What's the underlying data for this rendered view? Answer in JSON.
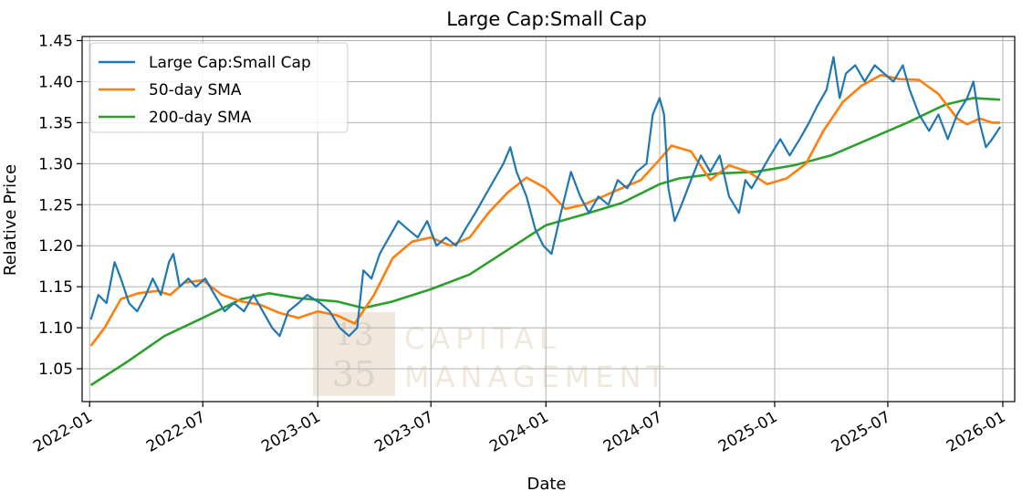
{
  "chart_data": {
    "type": "line",
    "title": "Large Cap:Small Cap",
    "xlabel": "Date",
    "ylabel": "Relative Price",
    "ylim": [
      1.01,
      1.455
    ],
    "x_range": [
      "2021-12-20",
      "2026-01-20"
    ],
    "grid": true,
    "legend_position": "top-left",
    "y_ticks": [
      1.05,
      1.1,
      1.15,
      1.2,
      1.25,
      1.3,
      1.35,
      1.4,
      1.45
    ],
    "y_tick_labels": [
      "1.05",
      "1.10",
      "1.15",
      "1.20",
      "1.25",
      "1.30",
      "1.35",
      "1.40",
      "1.45"
    ],
    "x_ticks": [
      "2022-01-01",
      "2022-07-01",
      "2023-01-01",
      "2023-07-01",
      "2024-01-01",
      "2024-07-01",
      "2025-01-01",
      "2025-07-01",
      "2026-01-01"
    ],
    "x_tick_labels": [
      "2022-01",
      "2022-07",
      "2023-01",
      "2023-07",
      "2024-01",
      "2024-07",
      "2025-01",
      "2025-07",
      "2026-01"
    ],
    "series": [
      {
        "name": "Large Cap:Small Cap",
        "color": "#1f77b4",
        "points": [
          [
            "2022-01-03",
            1.11
          ],
          [
            "2022-01-15",
            1.14
          ],
          [
            "2022-01-28",
            1.13
          ],
          [
            "2022-02-10",
            1.18
          ],
          [
            "2022-02-20",
            1.16
          ],
          [
            "2022-03-05",
            1.13
          ],
          [
            "2022-03-18",
            1.12
          ],
          [
            "2022-04-01",
            1.14
          ],
          [
            "2022-04-12",
            1.16
          ],
          [
            "2022-04-25",
            1.14
          ],
          [
            "2022-05-08",
            1.18
          ],
          [
            "2022-05-15",
            1.19
          ],
          [
            "2022-05-25",
            1.15
          ],
          [
            "2022-06-08",
            1.16
          ],
          [
            "2022-06-20",
            1.15
          ],
          [
            "2022-07-05",
            1.16
          ],
          [
            "2022-07-20",
            1.14
          ],
          [
            "2022-08-05",
            1.12
          ],
          [
            "2022-08-20",
            1.13
          ],
          [
            "2022-09-05",
            1.12
          ],
          [
            "2022-09-20",
            1.14
          ],
          [
            "2022-10-05",
            1.12
          ],
          [
            "2022-10-20",
            1.1
          ],
          [
            "2022-11-01",
            1.09
          ],
          [
            "2022-11-15",
            1.12
          ],
          [
            "2022-12-01",
            1.13
          ],
          [
            "2022-12-15",
            1.14
          ],
          [
            "2023-01-05",
            1.13
          ],
          [
            "2023-01-20",
            1.12
          ],
          [
            "2023-02-05",
            1.1
          ],
          [
            "2023-02-20",
            1.09
          ],
          [
            "2023-03-05",
            1.1
          ],
          [
            "2023-03-15",
            1.17
          ],
          [
            "2023-03-28",
            1.16
          ],
          [
            "2023-04-10",
            1.19
          ],
          [
            "2023-04-25",
            1.21
          ],
          [
            "2023-05-10",
            1.23
          ],
          [
            "2023-05-25",
            1.22
          ],
          [
            "2023-06-10",
            1.21
          ],
          [
            "2023-06-25",
            1.23
          ],
          [
            "2023-07-10",
            1.2
          ],
          [
            "2023-07-25",
            1.21
          ],
          [
            "2023-08-10",
            1.2
          ],
          [
            "2023-08-25",
            1.22
          ],
          [
            "2023-09-10",
            1.24
          ],
          [
            "2023-09-25",
            1.26
          ],
          [
            "2023-10-10",
            1.28
          ],
          [
            "2023-10-25",
            1.3
          ],
          [
            "2023-11-05",
            1.32
          ],
          [
            "2023-11-15",
            1.29
          ],
          [
            "2023-12-01",
            1.26
          ],
          [
            "2023-12-15",
            1.22
          ],
          [
            "2023-12-28",
            1.2
          ],
          [
            "2024-01-10",
            1.19
          ],
          [
            "2024-01-25",
            1.24
          ],
          [
            "2024-02-10",
            1.29
          ],
          [
            "2024-02-25",
            1.26
          ],
          [
            "2024-03-10",
            1.24
          ],
          [
            "2024-03-25",
            1.26
          ],
          [
            "2024-04-10",
            1.25
          ],
          [
            "2024-04-25",
            1.28
          ],
          [
            "2024-05-10",
            1.27
          ],
          [
            "2024-05-25",
            1.29
          ],
          [
            "2024-06-10",
            1.3
          ],
          [
            "2024-06-20",
            1.36
          ],
          [
            "2024-07-01",
            1.38
          ],
          [
            "2024-07-08",
            1.36
          ],
          [
            "2024-07-15",
            1.27
          ],
          [
            "2024-07-25",
            1.23
          ],
          [
            "2024-08-05",
            1.25
          ],
          [
            "2024-08-20",
            1.28
          ],
          [
            "2024-09-05",
            1.31
          ],
          [
            "2024-09-20",
            1.29
          ],
          [
            "2024-10-05",
            1.31
          ],
          [
            "2024-10-20",
            1.26
          ],
          [
            "2024-11-05",
            1.24
          ],
          [
            "2024-11-15",
            1.28
          ],
          [
            "2024-11-25",
            1.27
          ],
          [
            "2024-12-10",
            1.29
          ],
          [
            "2024-12-25",
            1.31
          ],
          [
            "2025-01-10",
            1.33
          ],
          [
            "2025-01-25",
            1.31
          ],
          [
            "2025-02-10",
            1.33
          ],
          [
            "2025-02-25",
            1.35
          ],
          [
            "2025-03-10",
            1.37
          ],
          [
            "2025-03-25",
            1.39
          ],
          [
            "2025-04-05",
            1.43
          ],
          [
            "2025-04-15",
            1.38
          ],
          [
            "2025-04-25",
            1.41
          ],
          [
            "2025-05-10",
            1.42
          ],
          [
            "2025-05-25",
            1.4
          ],
          [
            "2025-06-10",
            1.42
          ],
          [
            "2025-06-25",
            1.41
          ],
          [
            "2025-07-10",
            1.4
          ],
          [
            "2025-07-25",
            1.42
          ],
          [
            "2025-08-05",
            1.39
          ],
          [
            "2025-08-20",
            1.36
          ],
          [
            "2025-09-05",
            1.34
          ],
          [
            "2025-09-20",
            1.36
          ],
          [
            "2025-10-05",
            1.33
          ],
          [
            "2025-10-20",
            1.36
          ],
          [
            "2025-11-05",
            1.38
          ],
          [
            "2025-11-15",
            1.4
          ],
          [
            "2025-11-25",
            1.35
          ],
          [
            "2025-12-05",
            1.32
          ],
          [
            "2025-12-15",
            1.33
          ],
          [
            "2025-12-28",
            1.345
          ]
        ]
      },
      {
        "name": "50-day SMA",
        "color": "#ff7f0e",
        "points": [
          [
            "2022-01-03",
            1.078
          ],
          [
            "2022-01-25",
            1.1
          ],
          [
            "2022-02-20",
            1.135
          ],
          [
            "2022-03-20",
            1.142
          ],
          [
            "2022-04-20",
            1.145
          ],
          [
            "2022-05-10",
            1.14
          ],
          [
            "2022-06-01",
            1.155
          ],
          [
            "2022-07-01",
            1.158
          ],
          [
            "2022-08-01",
            1.14
          ],
          [
            "2022-09-01",
            1.132
          ],
          [
            "2022-10-01",
            1.128
          ],
          [
            "2022-11-01",
            1.118
          ],
          [
            "2022-12-01",
            1.112
          ],
          [
            "2023-01-01",
            1.12
          ],
          [
            "2023-02-01",
            1.115
          ],
          [
            "2023-03-01",
            1.105
          ],
          [
            "2023-04-01",
            1.14
          ],
          [
            "2023-05-01",
            1.185
          ],
          [
            "2023-06-01",
            1.205
          ],
          [
            "2023-07-01",
            1.21
          ],
          [
            "2023-08-01",
            1.2
          ],
          [
            "2023-09-01",
            1.21
          ],
          [
            "2023-10-01",
            1.24
          ],
          [
            "2023-11-01",
            1.265
          ],
          [
            "2023-12-01",
            1.283
          ],
          [
            "2024-01-01",
            1.27
          ],
          [
            "2024-02-01",
            1.245
          ],
          [
            "2024-03-01",
            1.25
          ],
          [
            "2024-04-01",
            1.26
          ],
          [
            "2024-05-01",
            1.27
          ],
          [
            "2024-06-01",
            1.28
          ],
          [
            "2024-07-01",
            1.305
          ],
          [
            "2024-07-20",
            1.322
          ],
          [
            "2024-08-20",
            1.315
          ],
          [
            "2024-09-20",
            1.28
          ],
          [
            "2024-10-20",
            1.298
          ],
          [
            "2024-11-20",
            1.29
          ],
          [
            "2024-12-20",
            1.275
          ],
          [
            "2025-01-20",
            1.282
          ],
          [
            "2025-02-20",
            1.3
          ],
          [
            "2025-03-20",
            1.34
          ],
          [
            "2025-04-20",
            1.375
          ],
          [
            "2025-05-20",
            1.395
          ],
          [
            "2025-06-20",
            1.408
          ],
          [
            "2025-07-20",
            1.403
          ],
          [
            "2025-08-20",
            1.402
          ],
          [
            "2025-09-20",
            1.385
          ],
          [
            "2025-10-20",
            1.355
          ],
          [
            "2025-11-05",
            1.348
          ],
          [
            "2025-11-25",
            1.355
          ],
          [
            "2025-12-15",
            1.35
          ],
          [
            "2025-12-28",
            1.35
          ]
        ]
      },
      {
        "name": "200-day SMA",
        "color": "#2ca02c",
        "points": [
          [
            "2022-01-03",
            1.03
          ],
          [
            "2022-03-01",
            1.058
          ],
          [
            "2022-05-01",
            1.09
          ],
          [
            "2022-07-01",
            1.112
          ],
          [
            "2022-09-01",
            1.135
          ],
          [
            "2022-10-15",
            1.142
          ],
          [
            "2022-12-01",
            1.136
          ],
          [
            "2023-02-01",
            1.132
          ],
          [
            "2023-03-15",
            1.124
          ],
          [
            "2023-05-01",
            1.132
          ],
          [
            "2023-07-01",
            1.147
          ],
          [
            "2023-09-01",
            1.165
          ],
          [
            "2023-11-01",
            1.195
          ],
          [
            "2024-01-01",
            1.225
          ],
          [
            "2024-03-01",
            1.238
          ],
          [
            "2024-05-01",
            1.252
          ],
          [
            "2024-07-01",
            1.275
          ],
          [
            "2024-08-01",
            1.282
          ],
          [
            "2024-10-01",
            1.288
          ],
          [
            "2024-12-01",
            1.29
          ],
          [
            "2025-02-01",
            1.298
          ],
          [
            "2025-04-01",
            1.31
          ],
          [
            "2025-06-01",
            1.33
          ],
          [
            "2025-08-01",
            1.35
          ],
          [
            "2025-10-01",
            1.372
          ],
          [
            "2025-11-15",
            1.38
          ],
          [
            "2025-12-28",
            1.378
          ]
        ]
      }
    ]
  },
  "watermark": {
    "number_top": "13",
    "number_bottom": "35",
    "line1": "CAPITAL",
    "line2": "MANAGEMENT"
  }
}
